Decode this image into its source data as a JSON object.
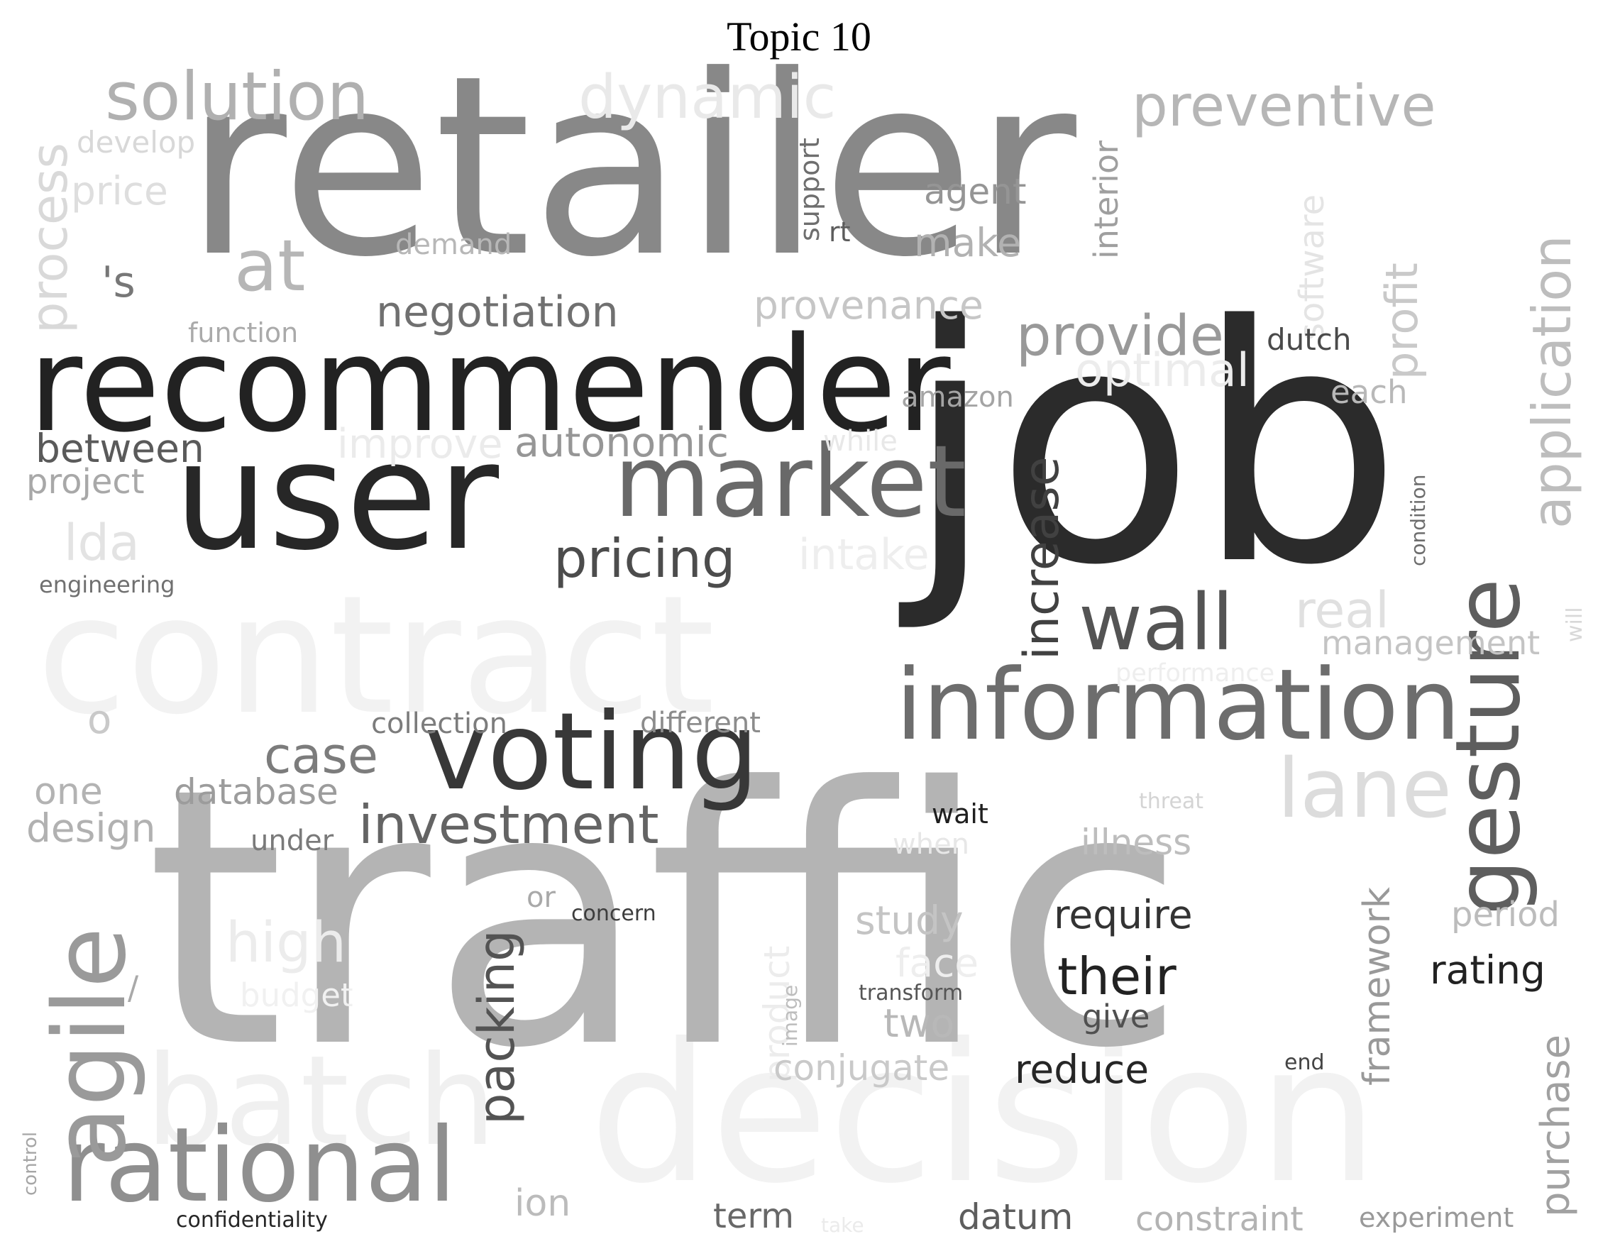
{
  "title": "Topic 10",
  "words": [
    {
      "text": "contract",
      "color": "#f2f2f2"
    },
    {
      "text": "decision",
      "color": "#f2f2f2"
    },
    {
      "text": "batch",
      "color": "#f0f0f0"
    },
    {
      "text": "traffic",
      "color": "#b4b4b4"
    },
    {
      "text": "retailer",
      "color": "#888888"
    },
    {
      "text": "job",
      "color": "#2b2b2b"
    },
    {
      "text": "recommender",
      "color": "#222222"
    },
    {
      "text": "user",
      "color": "#272727"
    },
    {
      "text": "market",
      "color": "#696969"
    },
    {
      "text": "information",
      "color": "#6d6d6d"
    },
    {
      "text": "voting",
      "color": "#383838"
    },
    {
      "text": "gesture",
      "color": "#5e5e5e"
    },
    {
      "text": "rational",
      "color": "#8f8f8f"
    },
    {
      "text": "agile",
      "color": "#9a9a9a"
    },
    {
      "text": "lane",
      "color": "#dcdcdc"
    },
    {
      "text": "wall",
      "color": "#545454"
    },
    {
      "text": "solution",
      "color": "#b0b0b0"
    },
    {
      "text": "at",
      "color": "#b6b6b6"
    },
    {
      "text": "dynamic",
      "color": "#e9e9e9"
    },
    {
      "text": "preventive",
      "color": "#b6b6b6"
    },
    {
      "text": "application",
      "color": "#bdbdbd"
    },
    {
      "text": "process",
      "color": "#d9d9d9"
    },
    {
      "text": "develop",
      "color": "#d8d8d8"
    },
    {
      "text": "price",
      "color": "#dedede"
    },
    {
      "text": "'s",
      "color": "#777777"
    },
    {
      "text": "demand",
      "color": "#b7b7b7"
    },
    {
      "text": "function",
      "color": "#aaaaaa"
    },
    {
      "text": "negotiation",
      "color": "#707070"
    },
    {
      "text": "provenance",
      "color": "#c6c6c6"
    },
    {
      "text": "support",
      "color": "#6e6e6e"
    },
    {
      "text": "rt",
      "color": "#5c5c5c"
    },
    {
      "text": "agent",
      "color": "#959595"
    },
    {
      "text": "make",
      "color": "#b2b2b2"
    },
    {
      "text": "interior",
      "color": "#9f9f9f"
    },
    {
      "text": "software",
      "color": "#e4e4e4"
    },
    {
      "text": "profit",
      "color": "#c9c9c9"
    },
    {
      "text": "provide",
      "color": "#999999"
    },
    {
      "text": "dutch",
      "color": "#4a4a4a"
    },
    {
      "text": "optimal",
      "color": "#ececec"
    },
    {
      "text": "each",
      "color": "#b8b8b8"
    },
    {
      "text": "amazon",
      "color": "#a4a4a4"
    },
    {
      "text": "increase",
      "color": "#414141"
    },
    {
      "text": "between",
      "color": "#5a5a5a"
    },
    {
      "text": "improve",
      "color": "#ebebeb"
    },
    {
      "text": "autonomic",
      "color": "#969696"
    },
    {
      "text": "while",
      "color": "#e8e8e8"
    },
    {
      "text": "project",
      "color": "#a8a8a8"
    },
    {
      "text": "lda",
      "color": "#e3e3e3"
    },
    {
      "text": "pricing",
      "color": "#4c4c4c"
    },
    {
      "text": "intake",
      "color": "#eeeeee"
    },
    {
      "text": "engineering",
      "color": "#707070"
    },
    {
      "text": "condition",
      "color": "#6d6d6d"
    },
    {
      "text": "real",
      "color": "#e0e0e0"
    },
    {
      "text": "management",
      "color": "#c4c4c4"
    },
    {
      "text": "will",
      "color": "#d8d8d8"
    },
    {
      "text": "performance",
      "color": "#eeeeee"
    },
    {
      "text": "o",
      "color": "#c9c9c9"
    },
    {
      "text": "collection",
      "color": "#7c7c7c"
    },
    {
      "text": "different",
      "color": "#8c8c8c"
    },
    {
      "text": "case",
      "color": "#7c7c7c"
    },
    {
      "text": "one",
      "color": "#b3b3b3"
    },
    {
      "text": "database",
      "color": "#9c9c9c"
    },
    {
      "text": "design",
      "color": "#b1b1b1"
    },
    {
      "text": "under",
      "color": "#7a7a7a"
    },
    {
      "text": "investment",
      "color": "#646464"
    },
    {
      "text": "wait",
      "color": "#1f1f1f"
    },
    {
      "text": "threat",
      "color": "#d4d4d4"
    },
    {
      "text": "when",
      "color": "#e7e7e7"
    },
    {
      "text": "illness",
      "color": "#bdbdbd"
    },
    {
      "text": "or",
      "color": "#a9a9a9"
    },
    {
      "text": "concern",
      "color": "#3d3d3d"
    },
    {
      "text": "high",
      "color": "#ececec"
    },
    {
      "text": "/",
      "color": "#a9a9a9"
    },
    {
      "text": "budget",
      "color": "#f1f1f1"
    },
    {
      "text": "packing",
      "color": "#535353"
    },
    {
      "text": "product",
      "color": "#ececec"
    },
    {
      "text": "image",
      "color": "#bdbdbd"
    },
    {
      "text": "study",
      "color": "#c4c4c4"
    },
    {
      "text": "face",
      "color": "#eeeeee"
    },
    {
      "text": "transform",
      "color": "#555555"
    },
    {
      "text": "two",
      "color": "#b8b8b8"
    },
    {
      "text": "conjugate",
      "color": "#c9c9c9"
    },
    {
      "text": "require",
      "color": "#333333"
    },
    {
      "text": "their",
      "color": "#222222"
    },
    {
      "text": "give",
      "color": "#505050"
    },
    {
      "text": "reduce",
      "color": "#262626"
    },
    {
      "text": "end",
      "color": "#444444"
    },
    {
      "text": "framework",
      "color": "#999999"
    },
    {
      "text": "period",
      "color": "#bcbcbc"
    },
    {
      "text": "rating",
      "color": "#222222"
    },
    {
      "text": "purchase",
      "color": "#a1a1a1"
    },
    {
      "text": "control",
      "color": "#a6a6a6"
    },
    {
      "text": "confidentiality",
      "color": "#262626"
    },
    {
      "text": "ion",
      "color": "#bbbbbb"
    },
    {
      "text": "term",
      "color": "#686868"
    },
    {
      "text": "take",
      "color": "#ebebeb"
    },
    {
      "text": "datum",
      "color": "#5d5d5d"
    },
    {
      "text": "constraint",
      "color": "#b3b3b3"
    },
    {
      "text": "experiment",
      "color": "#999999"
    }
  ]
}
